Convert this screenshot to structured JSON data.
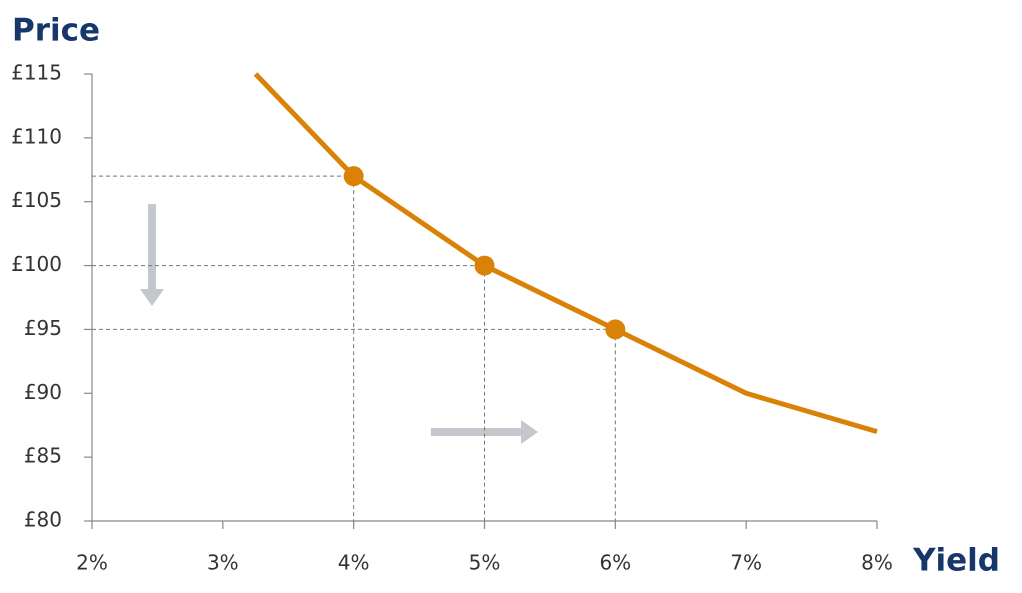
{
  "chart_data": {
    "type": "line",
    "y_title": "Price",
    "x_title": "Yield",
    "x": [
      3.25,
      4,
      5,
      6,
      7,
      8
    ],
    "values": [
      115,
      107,
      100,
      95,
      90,
      87
    ],
    "color": "#d98207",
    "markers": {
      "x": [
        4,
        5,
        6
      ],
      "values": [
        107,
        100,
        95
      ]
    },
    "xlim": [
      2,
      8
    ],
    "ylim": [
      80,
      115
    ],
    "xticks": [
      {
        "value": 2,
        "label": "2%"
      },
      {
        "value": 3,
        "label": "3%"
      },
      {
        "value": 4,
        "label": "4%"
      },
      {
        "value": 5,
        "label": "5%"
      },
      {
        "value": 6,
        "label": "6%"
      },
      {
        "value": 7,
        "label": "7%"
      },
      {
        "value": 8,
        "label": "8%"
      }
    ],
    "yticks": [
      {
        "value": 80,
        "label": "£80"
      },
      {
        "value": 85,
        "label": "£85"
      },
      {
        "value": 90,
        "label": "£90"
      },
      {
        "value": 95,
        "label": "£95"
      },
      {
        "value": 100,
        "label": "£100"
      },
      {
        "value": 105,
        "label": "£105"
      },
      {
        "value": 110,
        "label": "£110"
      },
      {
        "value": 115,
        "label": "£115"
      }
    ]
  }
}
